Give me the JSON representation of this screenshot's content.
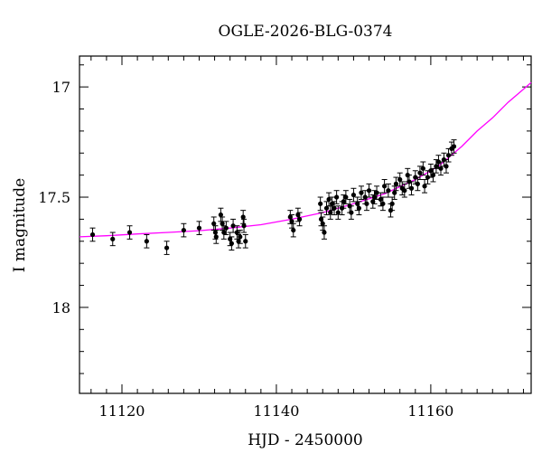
{
  "chart_data": {
    "type": "scatter",
    "title": "OGLE-2026-BLG-0374",
    "xlabel": "HJD - 2450000",
    "ylabel": "I magnitude",
    "xlim": [
      11114.5,
      11173
    ],
    "ylim": [
      18.39,
      16.86
    ],
    "y_inverted": true,
    "grid": false,
    "x_major_ticks": [
      11120,
      11140,
      11160
    ],
    "y_major_ticks": [
      17,
      17.5,
      18
    ],
    "x_tick_labels": [
      "11120",
      "11140",
      "11160"
    ],
    "y_tick_labels": [
      "17",
      "17.5",
      "18"
    ],
    "colors": {
      "points": "#000000",
      "model": "#ff00ff"
    },
    "series": [
      {
        "kind": "points_with_errorbars",
        "x": [
          11116.2,
          11118.8,
          11121.0,
          11123.2,
          11125.8,
          11128.0,
          11130.0,
          11131.9,
          11132.1,
          11132.2,
          11132.8,
          11133.0,
          11133.2,
          11133.5,
          11134.0,
          11134.2,
          11134.4,
          11134.9,
          11135.1,
          11135.3,
          11135.7,
          11135.8,
          11136.0,
          11141.8,
          11142.0,
          11142.2,
          11142.8,
          11143.0,
          11145.7,
          11145.8,
          11146.0,
          11146.2,
          11146.5,
          11146.8,
          11147.0,
          11147.2,
          11147.5,
          11147.8,
          11148.0,
          11148.5,
          11148.7,
          11149.0,
          11149.5,
          11149.7,
          11150.0,
          11150.5,
          11150.7,
          11151.0,
          11151.5,
          11151.7,
          11152.0,
          11152.5,
          11152.7,
          11153.0,
          11153.5,
          11153.8,
          11154.0,
          11154.5,
          11154.8,
          11155.0,
          11155.3,
          11155.5,
          11156.0,
          11156.3,
          11156.6,
          11157.0,
          11157.2,
          11157.5,
          11158.0,
          11158.3,
          11158.6,
          11159.0,
          11159.2,
          11159.6,
          11160.0,
          11160.3,
          11160.7,
          11161.0,
          11161.3,
          11161.7,
          11162.0,
          11162.3,
          11162.7,
          11163.0
        ],
        "y": [
          17.67,
          17.69,
          17.66,
          17.7,
          17.73,
          17.65,
          17.64,
          17.62,
          17.66,
          17.68,
          17.58,
          17.62,
          17.66,
          17.64,
          17.69,
          17.71,
          17.63,
          17.66,
          17.7,
          17.68,
          17.59,
          17.63,
          17.7,
          17.59,
          17.61,
          17.65,
          17.58,
          17.6,
          17.53,
          17.6,
          17.62,
          17.66,
          17.55,
          17.51,
          17.57,
          17.53,
          17.55,
          17.5,
          17.57,
          17.55,
          17.52,
          17.5,
          17.54,
          17.57,
          17.49,
          17.53,
          17.55,
          17.48,
          17.5,
          17.53,
          17.47,
          17.52,
          17.5,
          17.48,
          17.51,
          17.53,
          17.45,
          17.47,
          17.56,
          17.53,
          17.48,
          17.44,
          17.42,
          17.46,
          17.47,
          17.4,
          17.43,
          17.46,
          17.41,
          17.44,
          17.39,
          17.37,
          17.45,
          17.41,
          17.38,
          17.4,
          17.36,
          17.34,
          17.37,
          17.33,
          17.36,
          17.31,
          17.28,
          17.27
        ],
        "yerr": 0.03
      },
      {
        "kind": "model_curve",
        "x": [
          11114.5,
          11118,
          11122,
          11126,
          11130,
          11134,
          11138,
          11142,
          11146,
          11150,
          11154,
          11158,
          11161,
          11164,
          11166,
          11168,
          11170,
          11172,
          11173
        ],
        "y": [
          17.68,
          17.675,
          17.667,
          17.66,
          17.652,
          17.64,
          17.625,
          17.6,
          17.57,
          17.53,
          17.485,
          17.42,
          17.36,
          17.27,
          17.2,
          17.14,
          17.07,
          17.01,
          16.98
        ]
      }
    ]
  }
}
